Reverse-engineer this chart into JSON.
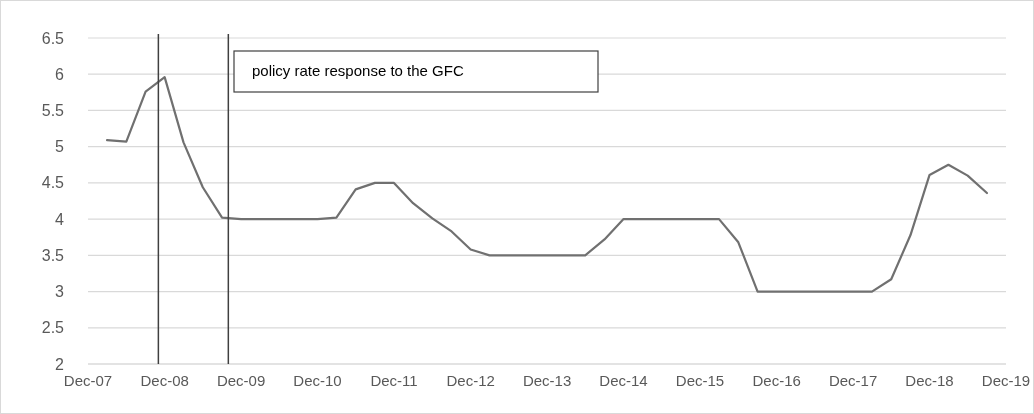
{
  "chart_data": {
    "type": "line",
    "x": [
      "2008-03",
      "2008-06",
      "2008-09",
      "2008-12",
      "2009-03",
      "2009-06",
      "2009-09",
      "2009-12",
      "2010-03",
      "2010-06",
      "2010-09",
      "2010-12",
      "2011-03",
      "2011-06",
      "2011-09",
      "2011-12",
      "2012-03",
      "2012-06",
      "2012-09",
      "2012-12",
      "2013-03",
      "2013-06",
      "2013-09",
      "2013-12",
      "2014-03",
      "2014-06",
      "2014-09",
      "2014-12",
      "2015-03",
      "2015-06",
      "2015-09",
      "2015-12",
      "2016-03",
      "2016-06",
      "2016-09",
      "2016-12",
      "2017-03",
      "2017-06",
      "2017-09",
      "2017-12",
      "2018-03",
      "2018-06",
      "2018-09",
      "2018-12",
      "2019-03",
      "2019-06",
      "2019-09"
    ],
    "series": [
      {
        "color": "#707070",
        "values": [
          5.09,
          5.07,
          5.76,
          5.96,
          5.06,
          4.44,
          4.02,
          4.0,
          4.0,
          4.0,
          4.0,
          4.0,
          4.02,
          4.41,
          4.5,
          4.5,
          4.22,
          4.01,
          3.83,
          3.58,
          3.5,
          3.5,
          3.5,
          3.5,
          3.5,
          3.5,
          3.72,
          4.0,
          4.0,
          4.0,
          4.0,
          4.0,
          4.0,
          3.68,
          3.0,
          3.0,
          3.0,
          3.0,
          3.0,
          3.0,
          3.0,
          3.17,
          3.78,
          4.61,
          4.75,
          4.6,
          4.36
        ]
      }
    ],
    "xlim": [
      "2007-12",
      "2019-12"
    ],
    "xticks": [
      {
        "value": "2007-12",
        "label": "Dec-07"
      },
      {
        "value": "2008-12",
        "label": "Dec-08"
      },
      {
        "value": "2009-12",
        "label": "Dec-09"
      },
      {
        "value": "2010-12",
        "label": "Dec-10"
      },
      {
        "value": "2011-12",
        "label": "Dec-11"
      },
      {
        "value": "2012-12",
        "label": "Dec-12"
      },
      {
        "value": "2013-12",
        "label": "Dec-13"
      },
      {
        "value": "2014-12",
        "label": "Dec-14"
      },
      {
        "value": "2015-12",
        "label": "Dec-15"
      },
      {
        "value": "2016-12",
        "label": "Dec-16"
      },
      {
        "value": "2017-12",
        "label": "Dec-17"
      },
      {
        "value": "2018-12",
        "label": "Dec-18"
      },
      {
        "value": "2019-12",
        "label": "Dec-19"
      }
    ],
    "ylim": [
      2,
      6.5
    ],
    "yticks": [
      2,
      2.5,
      3,
      3.5,
      4,
      4.5,
      5,
      5.5,
      6,
      6.5
    ],
    "grid": "y",
    "ref_lines": [
      {
        "axis": "x",
        "value": "2008-11",
        "color": "#404040"
      },
      {
        "axis": "x",
        "value": "2009-10",
        "color": "#404040"
      }
    ],
    "annotations": [
      "policy rate response to the GFC"
    ]
  }
}
